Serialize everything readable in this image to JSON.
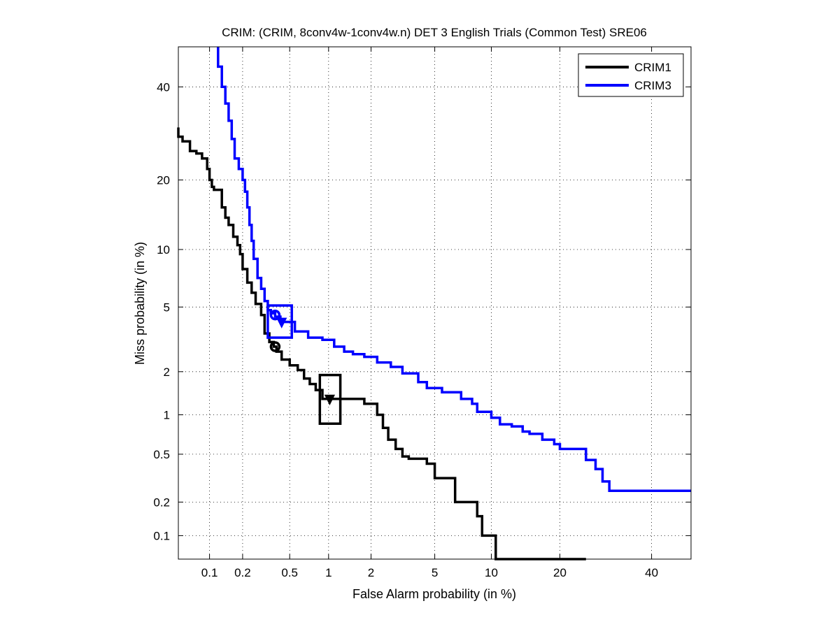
{
  "chart_data": {
    "type": "line",
    "title": "CRIM: (CRIM, 8conv4w-1conv4w.n) DET 3 English Trials (Common Test) SRE06",
    "xlabel": "False Alarm probability (in %)",
    "ylabel": "Miss probability (in %)",
    "x_scale": "normal-deviate (probit)",
    "y_scale": "normal-deviate (probit)",
    "xlim": [
      0.05,
      50
    ],
    "ylim": [
      0.06,
      50
    ],
    "x_ticks": [
      0.1,
      0.2,
      0.5,
      1,
      2,
      5,
      10,
      20,
      40
    ],
    "x_tick_labels": [
      "0.1",
      "0.2",
      "0.5",
      "1",
      "2",
      "5",
      "10",
      "20",
      "40"
    ],
    "y_ticks": [
      0.1,
      0.2,
      0.5,
      1,
      2,
      5,
      10,
      20,
      40
    ],
    "y_tick_labels": [
      "0.1",
      "0.2",
      "0.5",
      "1",
      "2",
      "5",
      "10",
      "20",
      "40"
    ],
    "grid": true,
    "legend_position": "top-right",
    "series": [
      {
        "name": "CRIM1",
        "color": "#000000",
        "points": [
          [
            0.05,
            30.5
          ],
          [
            0.055,
            28.5
          ],
          [
            0.065,
            27.5
          ],
          [
            0.075,
            25.5
          ],
          [
            0.085,
            25.0
          ],
          [
            0.095,
            24.0
          ],
          [
            0.1,
            22.0
          ],
          [
            0.105,
            20.0
          ],
          [
            0.11,
            18.8
          ],
          [
            0.13,
            18.3
          ],
          [
            0.14,
            15.5
          ],
          [
            0.15,
            14.0
          ],
          [
            0.165,
            13.0
          ],
          [
            0.18,
            11.5
          ],
          [
            0.19,
            10.5
          ],
          [
            0.2,
            9.5
          ],
          [
            0.22,
            8.0
          ],
          [
            0.24,
            6.8
          ],
          [
            0.26,
            6.0
          ],
          [
            0.29,
            5.2
          ],
          [
            0.31,
            4.5
          ],
          [
            0.34,
            3.5
          ],
          [
            0.37,
            3.1
          ],
          [
            0.39,
            2.9
          ],
          [
            0.43,
            2.7
          ],
          [
            0.5,
            2.4
          ],
          [
            0.58,
            2.2
          ],
          [
            0.65,
            2.05
          ],
          [
            0.72,
            1.8
          ],
          [
            0.8,
            1.65
          ],
          [
            0.9,
            1.5
          ],
          [
            1.0,
            1.3
          ],
          [
            1.2,
            1.3
          ],
          [
            1.8,
            1.3
          ],
          [
            2.2,
            1.2
          ],
          [
            2.4,
            1.0
          ],
          [
            2.6,
            0.8
          ],
          [
            2.9,
            0.65
          ],
          [
            3.2,
            0.55
          ],
          [
            3.5,
            0.48
          ],
          [
            4.5,
            0.46
          ],
          [
            5.0,
            0.42
          ],
          [
            5.5,
            0.32
          ],
          [
            6.5,
            0.32
          ],
          [
            7.0,
            0.2
          ],
          [
            8.5,
            0.2
          ],
          [
            9.0,
            0.15
          ],
          [
            9.5,
            0.1
          ],
          [
            10.5,
            0.1
          ],
          [
            11.2,
            0.06
          ],
          [
            25.0,
            0.06
          ]
        ],
        "operating_point": [
          0.38,
          2.9
        ],
        "min_dcf_point": [
          1.02,
          1.3
        ]
      },
      {
        "name": "CRIM3",
        "color": "#0000ff",
        "points": [
          [
            0.12,
            50.0
          ],
          [
            0.13,
            45.0
          ],
          [
            0.14,
            40.0
          ],
          [
            0.15,
            36.0
          ],
          [
            0.16,
            32.0
          ],
          [
            0.17,
            28.0
          ],
          [
            0.185,
            24.0
          ],
          [
            0.2,
            22.0
          ],
          [
            0.21,
            20.0
          ],
          [
            0.22,
            18.0
          ],
          [
            0.23,
            15.5
          ],
          [
            0.24,
            13.0
          ],
          [
            0.25,
            11.0
          ],
          [
            0.27,
            9.0
          ],
          [
            0.29,
            7.2
          ],
          [
            0.31,
            6.3
          ],
          [
            0.33,
            5.4
          ],
          [
            0.35,
            4.8
          ],
          [
            0.38,
            4.6
          ],
          [
            0.42,
            4.4
          ],
          [
            0.55,
            4.1
          ],
          [
            0.7,
            3.6
          ],
          [
            0.9,
            3.3
          ],
          [
            1.1,
            3.2
          ],
          [
            1.3,
            2.9
          ],
          [
            1.5,
            2.7
          ],
          [
            1.8,
            2.6
          ],
          [
            2.2,
            2.5
          ],
          [
            2.7,
            2.3
          ],
          [
            3.2,
            2.15
          ],
          [
            4.0,
            1.95
          ],
          [
            4.5,
            1.7
          ],
          [
            5.5,
            1.55
          ],
          [
            7.0,
            1.45
          ],
          [
            8.0,
            1.3
          ],
          [
            8.5,
            1.2
          ],
          [
            10.0,
            1.05
          ],
          [
            11.0,
            0.95
          ],
          [
            12.5,
            0.85
          ],
          [
            14.0,
            0.82
          ],
          [
            15.0,
            0.75
          ],
          [
            17.0,
            0.72
          ],
          [
            19.0,
            0.65
          ],
          [
            20.0,
            0.6
          ],
          [
            22.0,
            0.55
          ],
          [
            25.0,
            0.55
          ],
          [
            27.0,
            0.45
          ],
          [
            28.5,
            0.38
          ],
          [
            30.0,
            0.3
          ],
          [
            31.0,
            0.25
          ],
          [
            50.0,
            0.25
          ]
        ],
        "operating_point": [
          0.38,
          4.5
        ],
        "min_dcf_point": [
          0.43,
          4.1
        ]
      }
    ],
    "confidence_boxes": [
      {
        "series": "CRIM1",
        "x_range": [
          0.86,
          1.22
        ],
        "y_range": [
          0.86,
          1.9
        ]
      },
      {
        "series": "CRIM3",
        "x_range": [
          0.33,
          0.52
        ],
        "y_range": [
          3.3,
          5.1
        ]
      }
    ]
  }
}
